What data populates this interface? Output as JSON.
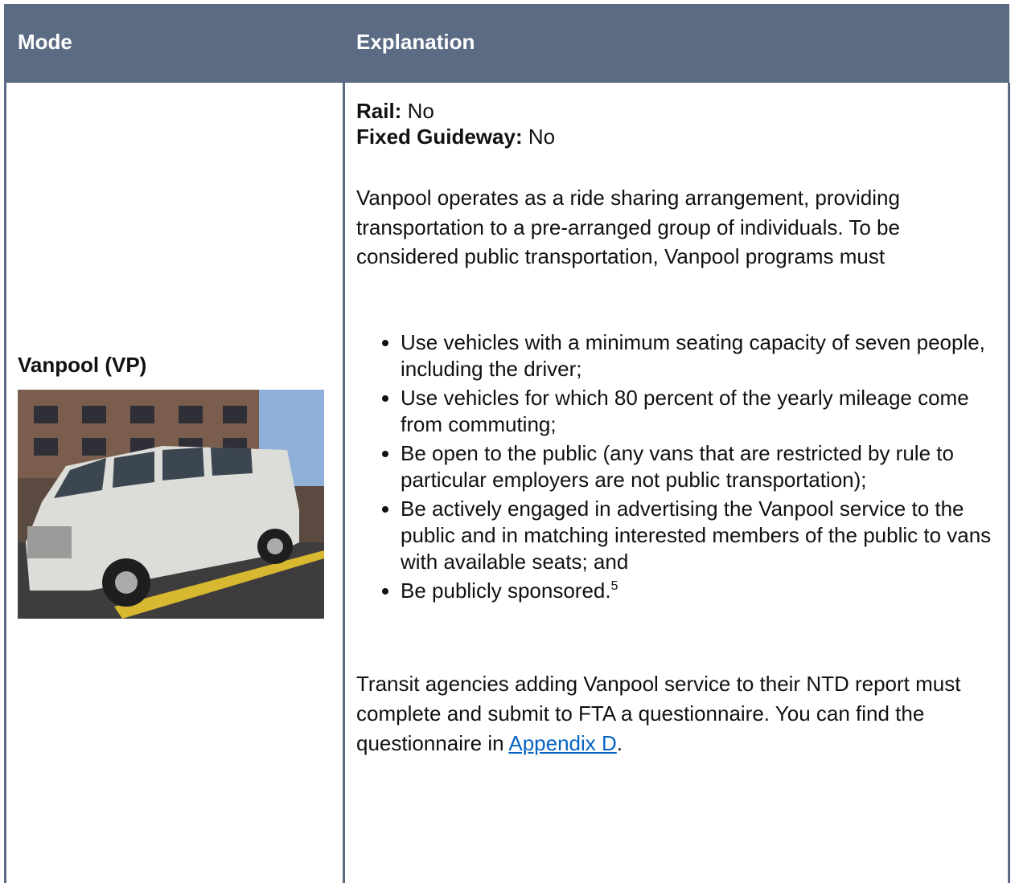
{
  "table": {
    "header": [
      "Mode",
      "Explanation"
    ],
    "row": {
      "mode": "Vanpool (VP)",
      "facts": [
        {
          "label": "Rail:",
          "value": "No"
        },
        {
          "label": "Fixed Guideway:",
          "value": "No"
        }
      ],
      "intro": "Vanpool operates as a ride sharing arrangement, providing transportation to a pre-arranged group of individuals. To be considered public transportation, Vanpool programs must",
      "bullets": [
        "Use vehicles with a minimum seating capacity of seven people, including the driver;",
        "Use vehicles for which 80 percent of the yearly mileage come from commuting;",
        "Be open to the public (any vans that are restricted by rule to particular employers are not public transportation);",
        "Be actively engaged in advertising the Vanpool service to the public and in matching interested members of the public to vans with available seats; and",
        "Be publicly sponsored."
      ],
      "footnote": "5",
      "closing": {
        "text": "Transit agencies adding Vanpool service to their NTD report must complete and submit to FTA a questionnaire. You can find the questionnaire in",
        "link": "Appendix D",
        "end": "."
      }
    }
  }
}
